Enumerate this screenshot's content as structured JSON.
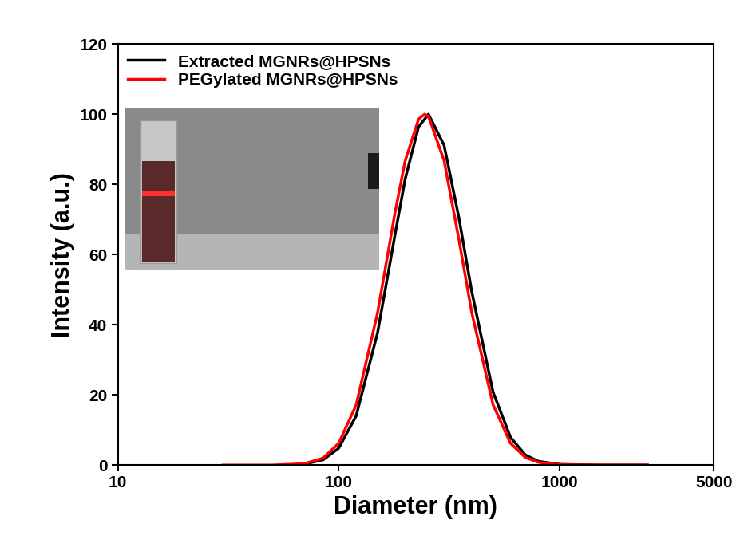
{
  "chart_data": {
    "type": "line",
    "x_label": "Diameter (nm)",
    "y_label": "Intensity (a.u.)",
    "log": "x",
    "xlim": [
      10,
      5000
    ],
    "xticks": [
      10,
      100,
      1000,
      5000
    ],
    "ylim": [
      0,
      120
    ],
    "yticks": [
      0,
      20,
      40,
      60,
      80,
      100,
      120
    ],
    "legend": "upper left",
    "series": [
      {
        "name": "Extracted MGNRs@HPSNs",
        "color": "#000000",
        "x": [
          60,
          70,
          85,
          100,
          120,
          150,
          180,
          200,
          230,
          255,
          300,
          350,
          400,
          500,
          600,
          700,
          800,
          1000,
          1500,
          2500
        ],
        "values": [
          0,
          0.3,
          1.5,
          4.8,
          14.0,
          37.7,
          65.7,
          81.5,
          96.4,
          100,
          91.2,
          70.6,
          49.6,
          20.8,
          7.9,
          2.9,
          1.1,
          0.2,
          0,
          0
        ]
      },
      {
        "name": "PEGylated MGNRs@HPSNs",
        "color": "#ff0000",
        "x": [
          30,
          50,
          70,
          85,
          100,
          120,
          150,
          180,
          200,
          230,
          245,
          255,
          300,
          350,
          400,
          500,
          600,
          700,
          800,
          1000,
          1500,
          2500
        ],
        "values": [
          0,
          0,
          0.4,
          2.0,
          6.2,
          17.1,
          43.4,
          72.0,
          86.7,
          98.6,
          100,
          99.4,
          86.8,
          64.4,
          43.6,
          17.2,
          6.2,
          2.2,
          0.8,
          0.1,
          0,
          0
        ]
      }
    ]
  }
}
